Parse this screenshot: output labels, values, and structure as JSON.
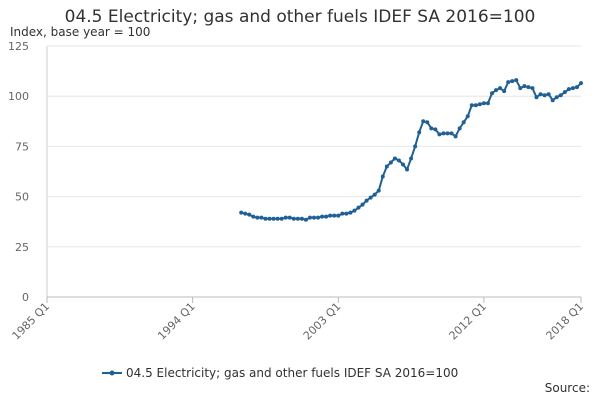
{
  "chart_data": {
    "type": "line",
    "title": "04.5 Electricity; gas and other fuels IDEF SA 2016=100",
    "subtitle": "Index, base year = 100",
    "source": "Source:",
    "categories": [
      "1985 Q1",
      null,
      null,
      null,
      null,
      null,
      null,
      null,
      null,
      null,
      null,
      null,
      null,
      null,
      null,
      null,
      null,
      null,
      null,
      null,
      null,
      null,
      null,
      null,
      null,
      null,
      null,
      null,
      null,
      null,
      null,
      null,
      null,
      null,
      null,
      null,
      "1994 Q1",
      null,
      null,
      null,
      null,
      null,
      null,
      null,
      null,
      null,
      null,
      null,
      null,
      null,
      null,
      null,
      null,
      null,
      null,
      null,
      null,
      null,
      null,
      null,
      null,
      null,
      null,
      null,
      null,
      null,
      null,
      null,
      null,
      null,
      null,
      null,
      "2003 Q1",
      null,
      null,
      null,
      null,
      null,
      null,
      null,
      null,
      null,
      null,
      null,
      null,
      null,
      null,
      null,
      null,
      null,
      null,
      null,
      null,
      null,
      null,
      null,
      null,
      null,
      null,
      null,
      null,
      null,
      null,
      null,
      null,
      null,
      null,
      null,
      "2012 Q1",
      null,
      null,
      null,
      null,
      null,
      null,
      null,
      null,
      null,
      null,
      null,
      null,
      null,
      null,
      null,
      null,
      null,
      null,
      null,
      null,
      null,
      null,
      null,
      "2018 Q1"
    ],
    "series": [
      {
        "name": "04.5 Electricity; gas and other fuels IDEF SA 2016=100",
        "color": "#206095",
        "values": [
          null,
          null,
          null,
          null,
          null,
          null,
          null,
          null,
          null,
          null,
          null,
          null,
          null,
          null,
          null,
          null,
          null,
          null,
          null,
          null,
          null,
          null,
          null,
          null,
          null,
          null,
          null,
          null,
          null,
          null,
          null,
          null,
          null,
          null,
          null,
          null,
          null,
          null,
          null,
          null,
          null,
          null,
          null,
          null,
          null,
          null,
          null,
          null,
          42,
          41.5,
          41,
          40,
          39.5,
          39.5,
          39,
          39,
          39,
          39,
          39,
          39.5,
          39.5,
          39,
          39,
          39,
          38.5,
          39.5,
          39.5,
          39.5,
          40,
          40,
          40.5,
          40.5,
          40.5,
          41.5,
          41.5,
          42,
          43,
          44.5,
          46,
          48,
          49.5,
          51,
          53,
          60,
          65,
          67,
          69,
          68,
          66,
          63.5,
          69,
          75,
          82,
          87.5,
          87,
          84,
          83.5,
          81,
          81.5,
          81.5,
          81.5,
          80,
          84,
          87,
          90,
          95.5,
          95.5,
          96,
          96.5,
          96.5,
          101.5,
          103,
          104,
          102.5,
          107,
          107.5,
          108,
          104,
          105,
          104.5,
          104,
          99.5,
          101,
          100.5,
          101,
          98,
          99.5,
          100.5,
          102,
          103.5,
          104,
          104.5,
          106.5
        ]
      }
    ],
    "ylim": [
      0,
      125
    ],
    "yticks": [
      0,
      25,
      50,
      75,
      100,
      125
    ],
    "grid": true
  }
}
